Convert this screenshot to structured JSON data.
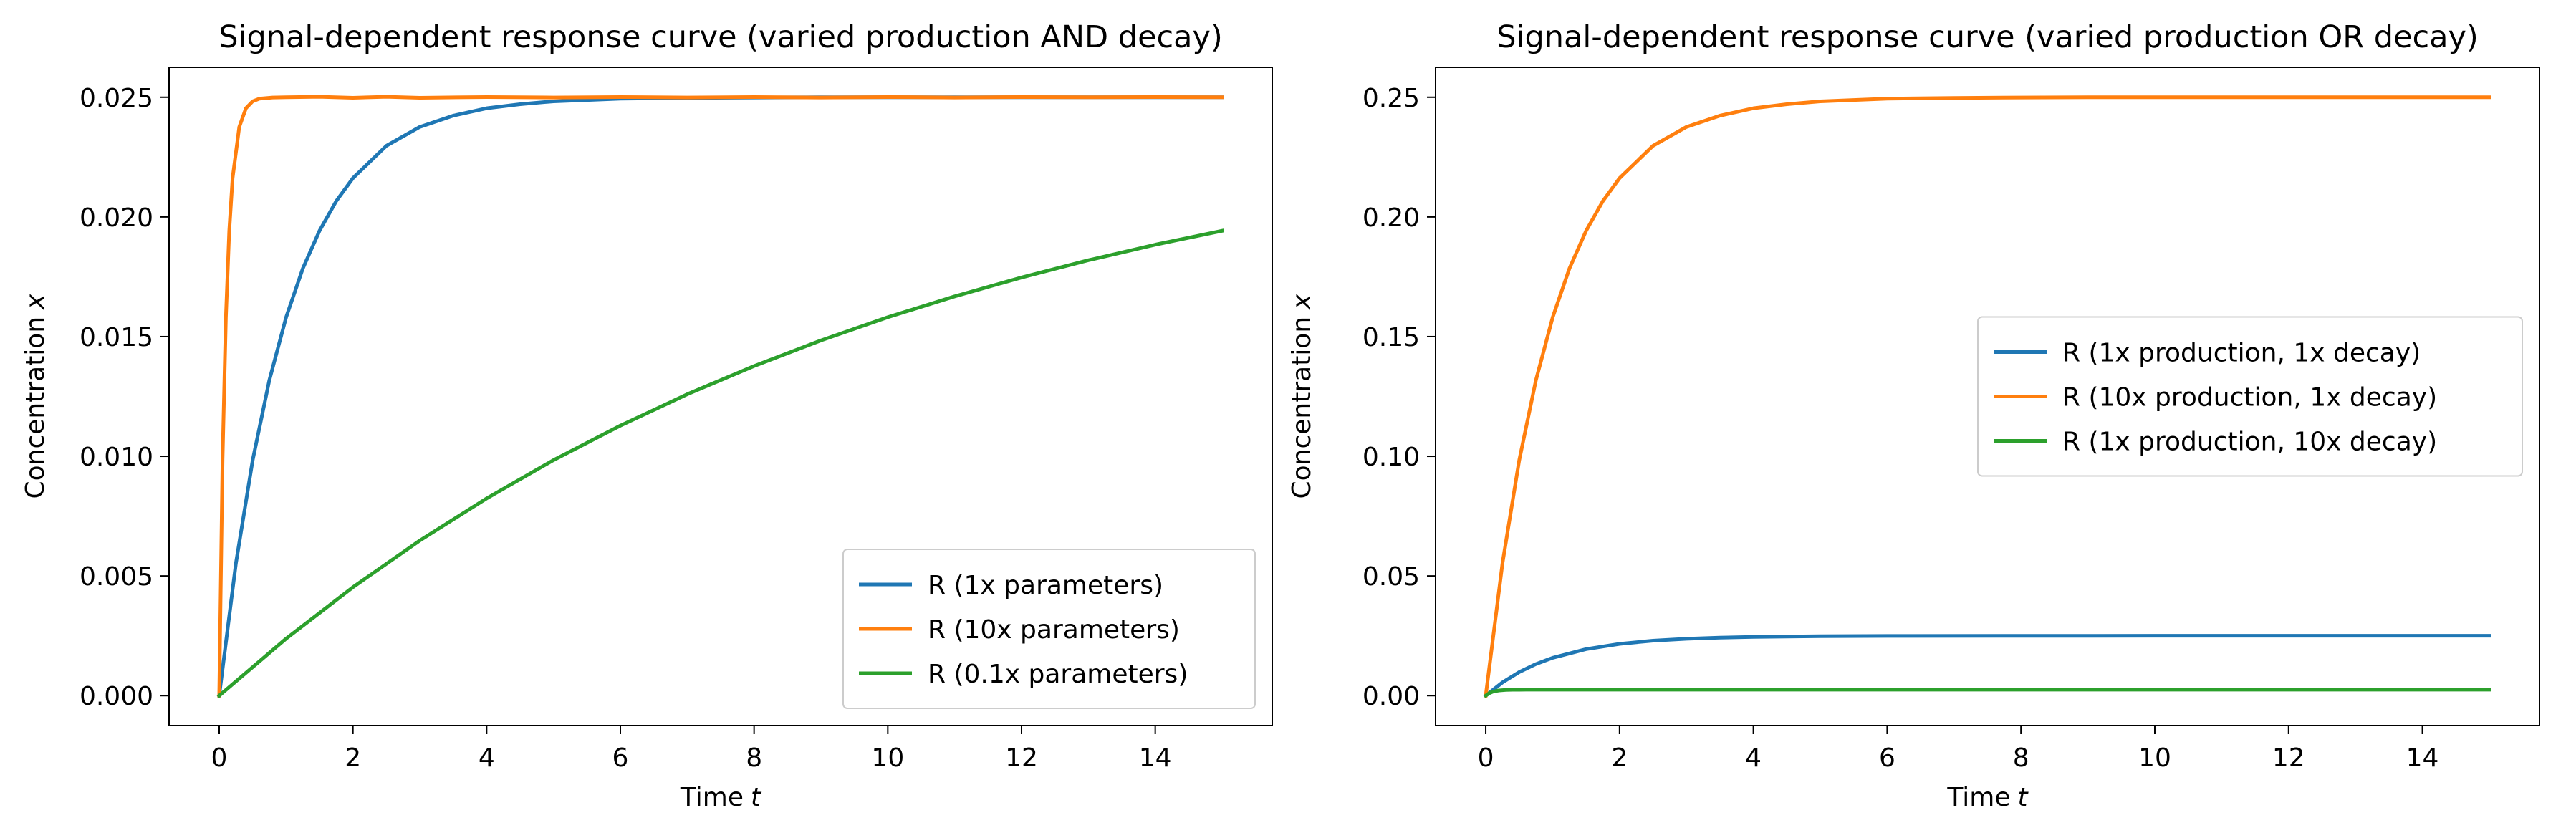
{
  "chart_data": [
    {
      "type": "line",
      "title": "Signal-dependent response curve (varied production AND decay)",
      "xlabel": "Time",
      "xlabel_var": "t",
      "ylabel": "Concentration",
      "ylabel_var": "x",
      "xlim": [
        -0.75,
        15.75
      ],
      "ylim": [
        -0.00125,
        0.02625
      ],
      "xticks": [
        0,
        2,
        4,
        6,
        8,
        10,
        12,
        14
      ],
      "xtick_labels": [
        "0",
        "2",
        "4",
        "6",
        "8",
        "10",
        "12",
        "14"
      ],
      "yticks": [
        0,
        0.005,
        0.01,
        0.015,
        0.02,
        0.025
      ],
      "ytick_labels": [
        "0.000",
        "0.005",
        "0.010",
        "0.015",
        "0.020",
        "0.025"
      ],
      "legend_position": "lower right",
      "grid": false,
      "series": [
        {
          "name": "R (1x parameters)",
          "color": "#1f77b4",
          "x": [
            0,
            0.25,
            0.5,
            0.75,
            1,
            1.25,
            1.5,
            1.75,
            2,
            2.5,
            3,
            3.5,
            4,
            4.5,
            5,
            6,
            7,
            8,
            9,
            10,
            12,
            15
          ],
          "y": [
            0,
            0.00553,
            0.00983,
            0.01318,
            0.0158,
            0.01784,
            0.01942,
            0.02066,
            0.02162,
            0.02297,
            0.02376,
            0.02423,
            0.02454,
            0.02471,
            0.02483,
            0.02494,
            0.02497,
            0.02499,
            0.025,
            0.025,
            0.025,
            0.025
          ]
        },
        {
          "name": "R (10x parameters)",
          "color": "#ff7f0e",
          "x": [
            0,
            0.05,
            0.1,
            0.15,
            0.2,
            0.3,
            0.4,
            0.5,
            0.6,
            0.8,
            1,
            1.5,
            2,
            2.5,
            3,
            4,
            5,
            6,
            7,
            8,
            9,
            10,
            11,
            12,
            13,
            14,
            15
          ],
          "y": [
            0,
            0.00987,
            0.0158,
            0.01942,
            0.02162,
            0.02376,
            0.02454,
            0.02483,
            0.02494,
            0.02499,
            0.025,
            0.02502,
            0.02498,
            0.02502,
            0.02498,
            0.02501,
            0.02499,
            0.02501,
            0.02499,
            0.02501,
            0.02499,
            0.02501,
            0.02499,
            0.02501,
            0.025,
            0.02501,
            0.025
          ]
        },
        {
          "name": "R (0.1x parameters)",
          "color": "#2ca02c",
          "x": [
            0,
            1,
            2,
            3,
            4,
            5,
            6,
            7,
            8,
            9,
            10,
            11,
            12,
            13,
            14,
            15
          ],
          "y": [
            0,
            0.00238,
            0.00453,
            0.00648,
            0.00824,
            0.00984,
            0.01128,
            0.01259,
            0.01377,
            0.01484,
            0.01581,
            0.01668,
            0.01747,
            0.01819,
            0.01884,
            0.01942
          ]
        }
      ]
    },
    {
      "type": "line",
      "title": "Signal-dependent response curve (varied production OR decay)",
      "xlabel": "Time",
      "xlabel_var": "t",
      "ylabel": "Concentration",
      "ylabel_var": "x",
      "xlim": [
        -0.75,
        15.75
      ],
      "ylim": [
        -0.0125,
        0.2625
      ],
      "xticks": [
        0,
        2,
        4,
        6,
        8,
        10,
        12,
        14
      ],
      "xtick_labels": [
        "0",
        "2",
        "4",
        "6",
        "8",
        "10",
        "12",
        "14"
      ],
      "yticks": [
        0,
        0.05,
        0.1,
        0.15,
        0.2,
        0.25
      ],
      "ytick_labels": [
        "0.00",
        "0.05",
        "0.10",
        "0.15",
        "0.20",
        "0.25"
      ],
      "legend_position": "center right",
      "grid": false,
      "series": [
        {
          "name": "R (1x production, 1x decay)",
          "color": "#1f77b4",
          "x": [
            0,
            0.25,
            0.5,
            0.75,
            1,
            1.5,
            2,
            2.5,
            3,
            3.5,
            4,
            5,
            6,
            8,
            10,
            12,
            15
          ],
          "y": [
            0,
            0.00553,
            0.00983,
            0.01318,
            0.0158,
            0.01942,
            0.02162,
            0.02297,
            0.02376,
            0.02423,
            0.02454,
            0.02483,
            0.02494,
            0.02499,
            0.025,
            0.025,
            0.025
          ]
        },
        {
          "name": "R (10x production, 1x decay)",
          "color": "#ff7f0e",
          "x": [
            0,
            0.25,
            0.5,
            0.75,
            1,
            1.25,
            1.5,
            1.75,
            2,
            2.5,
            3,
            3.5,
            4,
            4.5,
            5,
            6,
            7,
            8,
            9,
            10,
            12,
            15
          ],
          "y": [
            0,
            0.0553,
            0.0983,
            0.1318,
            0.158,
            0.1784,
            0.1942,
            0.2066,
            0.2162,
            0.2297,
            0.2376,
            0.2423,
            0.2454,
            0.2471,
            0.2483,
            0.2494,
            0.2497,
            0.2499,
            0.25,
            0.25,
            0.25,
            0.25
          ]
        },
        {
          "name": "R (1x production, 10x decay)",
          "color": "#2ca02c",
          "x": [
            0,
            0.05,
            0.1,
            0.15,
            0.2,
            0.3,
            0.4,
            0.5,
            0.6,
            0.8,
            1,
            2,
            4,
            8,
            15
          ],
          "y": [
            0,
            0.00099,
            0.00158,
            0.00194,
            0.00216,
            0.00238,
            0.00245,
            0.00248,
            0.00249,
            0.0025,
            0.0025,
            0.0025,
            0.0025,
            0.0025,
            0.0025
          ]
        }
      ]
    }
  ]
}
